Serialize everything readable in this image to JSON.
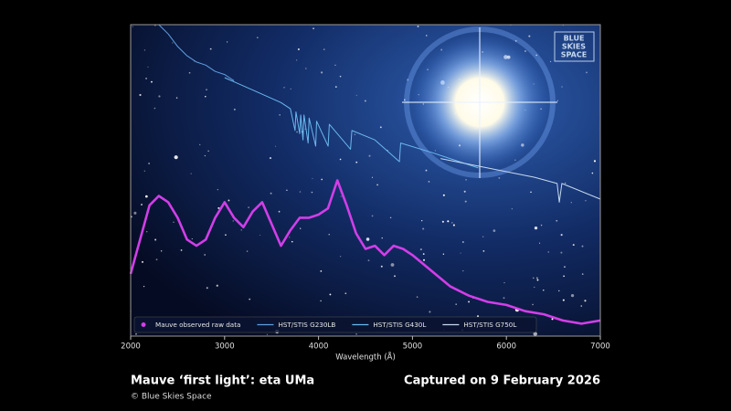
{
  "logo": [
    "BLUE",
    "SKIES",
    "SPACE"
  ],
  "caption": {
    "title": "Mauve ‘first light’: eta UMa",
    "date": "Captured on 9 February 2026",
    "credit": "© Blue Skies Space"
  },
  "chart_data": {
    "type": "line",
    "xlabel": "Wavelength (Å)",
    "xlim": [
      2000,
      7000
    ],
    "xticks": [
      2000,
      3000,
      4000,
      5000,
      6000,
      7000
    ],
    "ylim": [
      0,
      1
    ],
    "legend": "lower left",
    "series": [
      {
        "name": "Mauve observed raw data",
        "color": "#d23ee8",
        "kind": "scatter",
        "x": [
          2000,
          2100,
          2200,
          2300,
          2400,
          2500,
          2600,
          2700,
          2800,
          2900,
          3000,
          3100,
          3200,
          3300,
          3400,
          3500,
          3600,
          3700,
          3800,
          3900,
          4000,
          4100,
          4200,
          4300,
          4400,
          4500,
          4600,
          4700,
          4800,
          4900,
          5000,
          5200,
          5400,
          5600,
          5800,
          6000,
          6200,
          6400,
          6600,
          6800,
          7000
        ],
        "values": [
          0.2,
          0.31,
          0.42,
          0.45,
          0.43,
          0.38,
          0.31,
          0.29,
          0.31,
          0.38,
          0.43,
          0.38,
          0.35,
          0.4,
          0.43,
          0.36,
          0.29,
          0.34,
          0.38,
          0.38,
          0.39,
          0.41,
          0.5,
          0.42,
          0.33,
          0.28,
          0.29,
          0.26,
          0.29,
          0.28,
          0.26,
          0.21,
          0.16,
          0.13,
          0.11,
          0.1,
          0.08,
          0.07,
          0.05,
          0.04,
          0.05
        ]
      },
      {
        "name": "HST/STIS G230LB",
        "color": "#5f9fe0",
        "kind": "line",
        "x": [
          2300,
          2400,
          2500,
          2600,
          2700,
          2800,
          2900,
          3000,
          3100
        ],
        "values": [
          1.0,
          0.97,
          0.93,
          0.9,
          0.88,
          0.87,
          0.85,
          0.84,
          0.82
        ]
      },
      {
        "name": "HST/STIS G430L",
        "color": "#6ab8ee",
        "kind": "line",
        "x": [
          3000,
          3300,
          3600,
          3700,
          3750,
          3760,
          3800,
          3810,
          3835,
          3845,
          3889,
          3900,
          3970,
          3980,
          4102,
          4115,
          4340,
          4355,
          4600,
          4861,
          4875,
          5200,
          5500,
          5700
        ],
        "values": [
          0.83,
          0.79,
          0.75,
          0.73,
          0.66,
          0.72,
          0.65,
          0.71,
          0.63,
          0.71,
          0.62,
          0.7,
          0.61,
          0.69,
          0.61,
          0.68,
          0.6,
          0.66,
          0.63,
          0.56,
          0.62,
          0.59,
          0.56,
          0.54
        ]
      },
      {
        "name": "HST/STIS G750L",
        "color": "#c6d9ec",
        "kind": "line",
        "x": [
          5300,
          5800,
          6300,
          6540,
          6563,
          6590,
          7000
        ],
        "values": [
          0.57,
          0.54,
          0.51,
          0.49,
          0.43,
          0.49,
          0.44
        ]
      }
    ]
  }
}
